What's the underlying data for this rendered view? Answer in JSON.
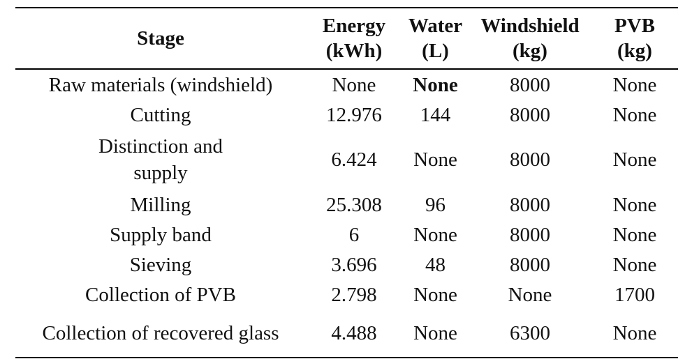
{
  "table": {
    "headers": [
      {
        "key": "stage",
        "lines": [
          "Stage"
        ]
      },
      {
        "key": "energy",
        "lines": [
          "Energy",
          "(kWh)"
        ]
      },
      {
        "key": "water",
        "lines": [
          "Water",
          "(L)"
        ]
      },
      {
        "key": "windshield",
        "lines": [
          "Windshield",
          "(kg)"
        ]
      },
      {
        "key": "pvb",
        "lines": [
          "PVB",
          "(kg)"
        ]
      }
    ],
    "rows": [
      {
        "stage": [
          "Raw materials (windshield)"
        ],
        "energy": "None",
        "water": "None",
        "water_bold": true,
        "windshield": "8000",
        "pvb": "None"
      },
      {
        "stage": [
          "Cutting"
        ],
        "energy": "12.976",
        "water": "144",
        "windshield": "8000",
        "pvb": "None"
      },
      {
        "stage": [
          "Distinction and",
          "supply"
        ],
        "energy": "6.424",
        "water": "None",
        "windshield": "8000",
        "pvb": "None"
      },
      {
        "stage": [
          "Milling"
        ],
        "energy": "25.308",
        "water": "96",
        "windshield": "8000",
        "pvb": "None"
      },
      {
        "stage": [
          "Supply band"
        ],
        "energy": "6",
        "water": "None",
        "windshield": "8000",
        "pvb": "None"
      },
      {
        "stage": [
          "Sieving"
        ],
        "energy": "3.696",
        "water": "48",
        "windshield": "8000",
        "pvb": "None"
      },
      {
        "stage": [
          "Collection of PVB"
        ],
        "energy": "2.798",
        "water": "None",
        "windshield": "None",
        "pvb": "1700"
      },
      {
        "stage": [
          "Collection of recovered glass"
        ],
        "energy": "4.488",
        "water": "None",
        "windshield": "6300",
        "pvb": "None"
      }
    ]
  }
}
